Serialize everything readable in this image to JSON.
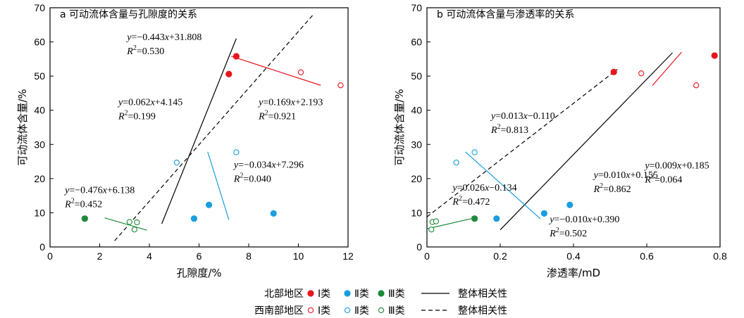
{
  "colors": {
    "I": "#e8141e",
    "II": "#1a9ee0",
    "III": "#1d8a3a",
    "axis": "#000000"
  },
  "chart_data": [
    {
      "type": "scatter",
      "title": "a 可动流体含量与孔隙度的关系",
      "xlabel": "孔隙度/%",
      "ylabel": "可动流体含量/%",
      "xlim": [
        0,
        12
      ],
      "ylim": [
        0,
        70
      ],
      "xticks": [
        "0",
        "2",
        "4",
        "6",
        "8",
        "10",
        "12"
      ],
      "yticks": [
        "0",
        "10",
        "20",
        "30",
        "40",
        "50",
        "60",
        "70"
      ],
      "series": [
        {
          "name": "北部地区 Ⅰ类",
          "class": "I",
          "filled": true,
          "points": [
            [
              7.2,
              50.6
            ],
            [
              7.5,
              55.8
            ]
          ]
        },
        {
          "name": "北部地区 Ⅱ类",
          "class": "II",
          "filled": true,
          "points": [
            [
              5.8,
              8.3
            ],
            [
              6.4,
              12.3
            ],
            [
              9.0,
              9.8
            ]
          ]
        },
        {
          "name": "北部地区 Ⅲ类",
          "class": "III",
          "filled": true,
          "points": [
            [
              1.4,
              8.3
            ]
          ]
        },
        {
          "name": "西南部地区 Ⅰ类",
          "class": "I",
          "filled": false,
          "points": [
            [
              10.1,
              51.1
            ],
            [
              11.7,
              47.3
            ]
          ]
        },
        {
          "name": "西南部地区 Ⅱ类",
          "class": "II",
          "filled": false,
          "points": [
            [
              5.1,
              24.7
            ],
            [
              7.5,
              27.7
            ]
          ]
        },
        {
          "name": "西南部地区 Ⅲ类",
          "class": "III",
          "filled": false,
          "points": [
            [
              3.2,
              7.3
            ],
            [
              3.5,
              7.2
            ],
            [
              3.4,
              5.1
            ]
          ]
        }
      ],
      "fits": [
        {
          "class": "black",
          "style": "solid",
          "from": [
            4.5,
            6.8
          ],
          "to": [
            7.5,
            61.0
          ]
        },
        {
          "class": "black",
          "style": "dashed",
          "from": [
            2.6,
            1.8
          ],
          "to": [
            10.6,
            68.0
          ]
        },
        {
          "class": "I",
          "style": "solid",
          "from": [
            7.3,
            55.8
          ],
          "to": [
            10.9,
            47.3
          ]
        },
        {
          "class": "II",
          "style": "solid",
          "from": [
            6.35,
            27.8
          ],
          "to": [
            7.2,
            8.0
          ]
        },
        {
          "class": "III",
          "style": "solid",
          "from": [
            2.2,
            8.5
          ],
          "to": [
            3.9,
            4.9
          ]
        }
      ],
      "annotations": [
        {
          "eq": "y=−0.443x+31.808",
          "r2": "0.530",
          "at": [
            3.1,
            60.5
          ]
        },
        {
          "eq": "y=0.062x+4.145",
          "r2": "0.199",
          "at": [
            2.75,
            41.5
          ]
        },
        {
          "eq": "y=0.169x+2.193",
          "r2": "0.921",
          "at": [
            8.4,
            41.5
          ]
        },
        {
          "eq": "y=−0.034x+7.296",
          "r2": "0.040",
          "at": [
            7.4,
            23.2
          ]
        },
        {
          "eq": "y=−0.476x+6.138",
          "r2": "0.452",
          "at": [
            0.6,
            15.8
          ]
        }
      ]
    },
    {
      "type": "scatter",
      "title": "b 可动流体含量与渗透率的关系",
      "xlabel": "渗透率/mD",
      "ylabel": "可动流体含量/%",
      "xlim": [
        0,
        0.8
      ],
      "ylim": [
        0,
        70
      ],
      "xticks": [
        "0",
        "0.2",
        "0.4",
        "0.6",
        "0.8"
      ],
      "yticks": [
        "0",
        "10",
        "20",
        "30",
        "40",
        "50",
        "60",
        "70"
      ],
      "series": [
        {
          "name": "北部地区 Ⅰ类",
          "class": "I",
          "filled": true,
          "points": [
            [
              0.51,
              51.2
            ],
            [
              0.785,
              56.0
            ]
          ]
        },
        {
          "name": "北部地区 Ⅱ类",
          "class": "II",
          "filled": true,
          "points": [
            [
              0.19,
              8.3
            ],
            [
              0.32,
              9.8
            ],
            [
              0.39,
              12.3
            ]
          ]
        },
        {
          "name": "北部地区 Ⅲ类",
          "class": "III",
          "filled": true,
          "points": [
            [
              0.13,
              8.3
            ]
          ]
        },
        {
          "name": "西南部地区 Ⅰ类",
          "class": "I",
          "filled": false,
          "points": [
            [
              0.585,
              50.8
            ],
            [
              0.735,
              47.3
            ]
          ]
        },
        {
          "name": "西南部地区 Ⅱ类",
          "class": "II",
          "filled": false,
          "points": [
            [
              0.08,
              24.7
            ],
            [
              0.13,
              27.7
            ]
          ]
        },
        {
          "name": "西南部地区 Ⅲ类",
          "class": "III",
          "filled": false,
          "points": [
            [
              0.012,
              5.1
            ],
            [
              0.015,
              7.3
            ],
            [
              0.025,
              7.5
            ]
          ]
        }
      ],
      "fits": [
        {
          "class": "black",
          "style": "solid",
          "from": [
            0.2,
            5.0
          ],
          "to": [
            0.67,
            56.8
          ]
        },
        {
          "class": "black",
          "style": "dashed",
          "from": [
            0.0,
            8.8
          ],
          "to": [
            0.52,
            52.0
          ]
        },
        {
          "class": "I",
          "style": "solid",
          "from": [
            0.615,
            47.2
          ],
          "to": [
            0.695,
            57.0
          ]
        },
        {
          "class": "II",
          "style": "solid",
          "from": [
            0.105,
            27.8
          ],
          "to": [
            0.31,
            8.2
          ]
        },
        {
          "class": "III",
          "style": "solid",
          "from": [
            0.0,
            5.3
          ],
          "to": [
            0.13,
            8.5
          ]
        }
      ],
      "annotations": [
        {
          "eq": "y=0.013x−0.110",
          "r2": "0.813",
          "at": [
            0.175,
            37.5
          ]
        },
        {
          "eq": "y=0.009x+0.185",
          "r2": "0.064",
          "at": [
            0.595,
            23.0
          ]
        },
        {
          "eq": "y=0.010x+0.155",
          "r2": "0.862",
          "at": [
            0.455,
            20.2
          ]
        },
        {
          "eq": "y=0.026x−0.134",
          "r2": "0.472",
          "at": [
            0.07,
            16.5
          ]
        },
        {
          "eq": "y=−0.010x+0.390",
          "r2": "0.502",
          "at": [
            0.335,
            7.2
          ]
        }
      ]
    }
  ],
  "legend": {
    "rows": [
      {
        "region": "北部地区",
        "filled": true,
        "items": [
          {
            "class": "I",
            "label": "Ⅰ类"
          },
          {
            "class": "II",
            "label": "Ⅱ类"
          },
          {
            "class": "III",
            "label": "Ⅲ类"
          }
        ],
        "line_style": "solid",
        "line_label": "整体相关性"
      },
      {
        "region": "西南部地区",
        "filled": false,
        "items": [
          {
            "class": "I",
            "label": "Ⅰ类"
          },
          {
            "class": "II",
            "label": "Ⅱ类"
          },
          {
            "class": "III",
            "label": "Ⅲ类"
          }
        ],
        "line_style": "dashed",
        "line_label": "整体相关性"
      }
    ]
  }
}
